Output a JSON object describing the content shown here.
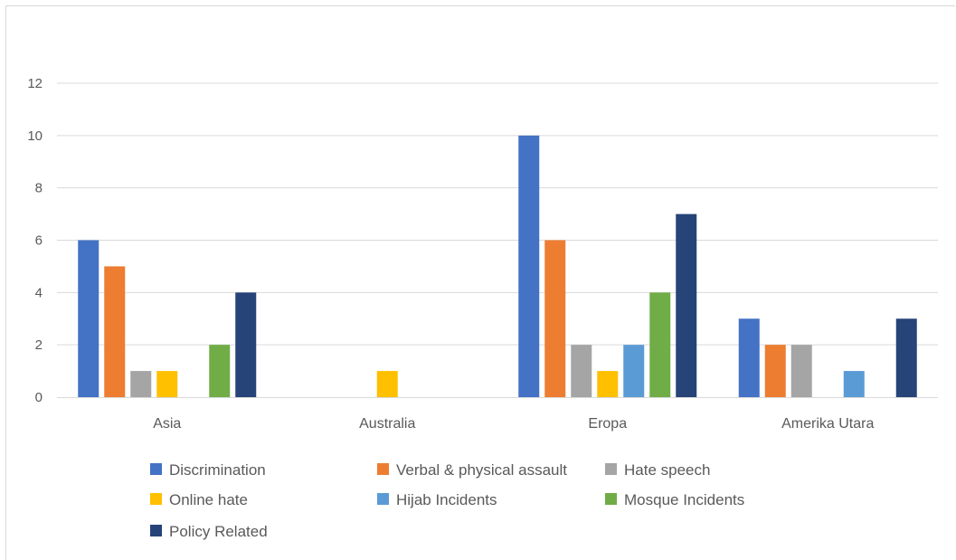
{
  "chart_data": {
    "type": "bar",
    "categories": [
      "Asia",
      "Australia",
      "Eropa",
      "Amerika Utara"
    ],
    "series": [
      {
        "name": "Discrimination",
        "color": "#4472c4",
        "values": [
          6,
          0,
          10,
          3
        ]
      },
      {
        "name": "Verbal & physical assault",
        "color": "#ed7d31",
        "values": [
          5,
          0,
          6,
          2
        ]
      },
      {
        "name": "Hate speech",
        "color": "#a5a5a5",
        "values": [
          1,
          0,
          2,
          2
        ]
      },
      {
        "name": "Online hate",
        "color": "#ffc000",
        "values": [
          1,
          1,
          1,
          0
        ]
      },
      {
        "name": "Hijab Incidents",
        "color": "#5b9bd5",
        "values": [
          0,
          0,
          2,
          1
        ]
      },
      {
        "name": "Mosque Incidents",
        "color": "#70ad47",
        "values": [
          2,
          0,
          4,
          0
        ]
      },
      {
        "name": "Policy Related",
        "color": "#264478",
        "values": [
          4,
          0,
          7,
          3
        ]
      }
    ],
    "yticks": [
      "0",
      "2",
      "4",
      "6",
      "8",
      "10",
      "12"
    ],
    "ylim": [
      0,
      12
    ],
    "grid": true,
    "legend": "bottom"
  }
}
